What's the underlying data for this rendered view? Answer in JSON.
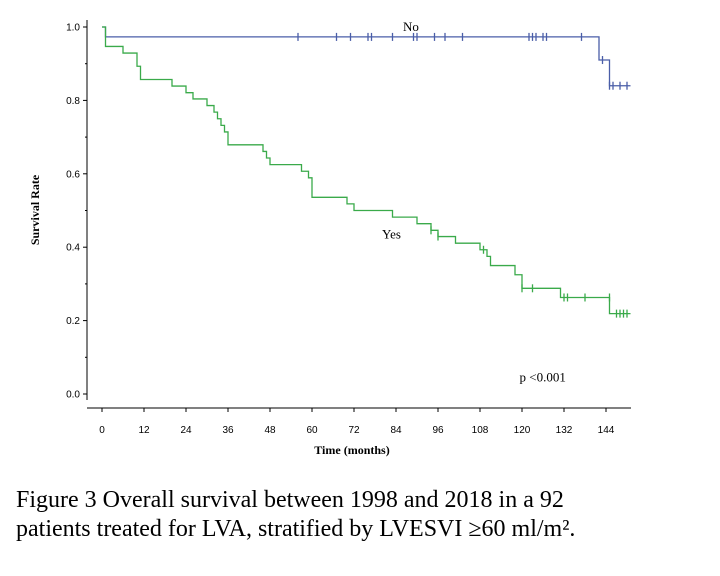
{
  "chart_data": {
    "type": "line",
    "subtype": "kaplan-meier",
    "xlabel": "Time (months)",
    "ylabel": "Survival Rate",
    "xlim": [
      -6,
      152
    ],
    "ylim": [
      -0.02,
      1.04
    ],
    "x_ticks": [
      0,
      12,
      24,
      36,
      48,
      60,
      72,
      84,
      96,
      108,
      120,
      132,
      144
    ],
    "y_ticks": [
      0.0,
      0.2,
      0.4,
      0.6,
      0.8,
      1.0
    ],
    "y_tick_labels": [
      "0.0",
      "0.2",
      "0.4",
      "0.6",
      "0.8",
      "1.0"
    ],
    "series": [
      {
        "name": "No",
        "color": "#4a5ea8",
        "label_at": [
          86,
          1.0
        ],
        "steps": [
          [
            0,
            1.0
          ],
          [
            1,
            0.973
          ],
          [
            141,
            0.973
          ],
          [
            142,
            0.91
          ],
          [
            144,
            0.91
          ],
          [
            145,
            0.84
          ],
          [
            151,
            0.84
          ]
        ],
        "censored": [
          [
            56,
            0.973
          ],
          [
            67,
            0.973
          ],
          [
            71,
            0.973
          ],
          [
            76,
            0.973
          ],
          [
            77,
            0.973
          ],
          [
            83,
            0.973
          ],
          [
            89,
            0.973
          ],
          [
            90,
            0.973
          ],
          [
            95,
            0.973
          ],
          [
            98,
            0.973
          ],
          [
            103,
            0.973
          ],
          [
            122,
            0.973
          ],
          [
            123,
            0.973
          ],
          [
            124,
            0.973
          ],
          [
            126,
            0.973
          ],
          [
            127,
            0.973
          ],
          [
            137,
            0.973
          ],
          [
            143,
            0.91
          ],
          [
            145,
            0.84
          ],
          [
            146,
            0.84
          ],
          [
            148,
            0.84
          ],
          [
            150,
            0.84
          ]
        ]
      },
      {
        "name": "Yes",
        "color": "#3aaa4a",
        "label_at": [
          80,
          0.435
        ],
        "steps": [
          [
            0,
            1.0
          ],
          [
            1,
            0.947
          ],
          [
            6,
            0.947
          ],
          [
            6,
            0.929
          ],
          [
            10,
            0.929
          ],
          [
            10,
            0.893
          ],
          [
            11,
            0.893
          ],
          [
            11,
            0.857
          ],
          [
            20,
            0.857
          ],
          [
            20,
            0.839
          ],
          [
            24,
            0.839
          ],
          [
            24,
            0.821
          ],
          [
            26,
            0.821
          ],
          [
            26,
            0.804
          ],
          [
            30,
            0.804
          ],
          [
            30,
            0.786
          ],
          [
            32,
            0.786
          ],
          [
            32,
            0.768
          ],
          [
            33,
            0.768
          ],
          [
            33,
            0.75
          ],
          [
            34,
            0.75
          ],
          [
            34,
            0.732
          ],
          [
            35,
            0.732
          ],
          [
            35,
            0.714
          ],
          [
            36,
            0.714
          ],
          [
            36,
            0.679
          ],
          [
            46,
            0.679
          ],
          [
            46,
            0.661
          ],
          [
            47,
            0.661
          ],
          [
            47,
            0.643
          ],
          [
            48,
            0.643
          ],
          [
            48,
            0.625
          ],
          [
            57,
            0.625
          ],
          [
            57,
            0.607
          ],
          [
            59,
            0.607
          ],
          [
            59,
            0.589
          ],
          [
            60,
            0.589
          ],
          [
            60,
            0.536
          ],
          [
            70,
            0.536
          ],
          [
            70,
            0.518
          ],
          [
            72,
            0.518
          ],
          [
            72,
            0.5
          ],
          [
            83,
            0.5
          ],
          [
            83,
            0.482
          ],
          [
            90,
            0.482
          ],
          [
            90,
            0.464
          ],
          [
            94,
            0.464
          ],
          [
            94,
            0.446
          ],
          [
            96,
            0.446
          ],
          [
            96,
            0.429
          ],
          [
            101,
            0.429
          ],
          [
            101,
            0.411
          ],
          [
            108,
            0.411
          ],
          [
            108,
            0.393
          ],
          [
            110,
            0.393
          ],
          [
            110,
            0.375
          ],
          [
            111,
            0.375
          ],
          [
            111,
            0.35
          ],
          [
            118,
            0.35
          ],
          [
            118,
            0.325
          ],
          [
            120,
            0.325
          ],
          [
            120,
            0.288
          ],
          [
            131,
            0.288
          ],
          [
            131,
            0.263
          ],
          [
            145,
            0.263
          ],
          [
            145,
            0.219
          ],
          [
            151,
            0.219
          ]
        ],
        "censored": [
          [
            94,
            0.446
          ],
          [
            96,
            0.429
          ],
          [
            109,
            0.393
          ],
          [
            120,
            0.288
          ],
          [
            123,
            0.288
          ],
          [
            132,
            0.263
          ],
          [
            133,
            0.263
          ],
          [
            138,
            0.263
          ],
          [
            145,
            0.263
          ],
          [
            147,
            0.219
          ],
          [
            148,
            0.219
          ],
          [
            149,
            0.219
          ],
          [
            150,
            0.219
          ]
        ]
      }
    ],
    "annotations": [
      {
        "text": "p <0.001",
        "at": [
          121,
          0.045
        ]
      }
    ]
  },
  "caption": {
    "line1": "Figure 3 Overall survival between 1998 and 2018 in a 92",
    "line2": "patients treated for LVA, stratified by LVESVI ≥60 ml/m²."
  }
}
